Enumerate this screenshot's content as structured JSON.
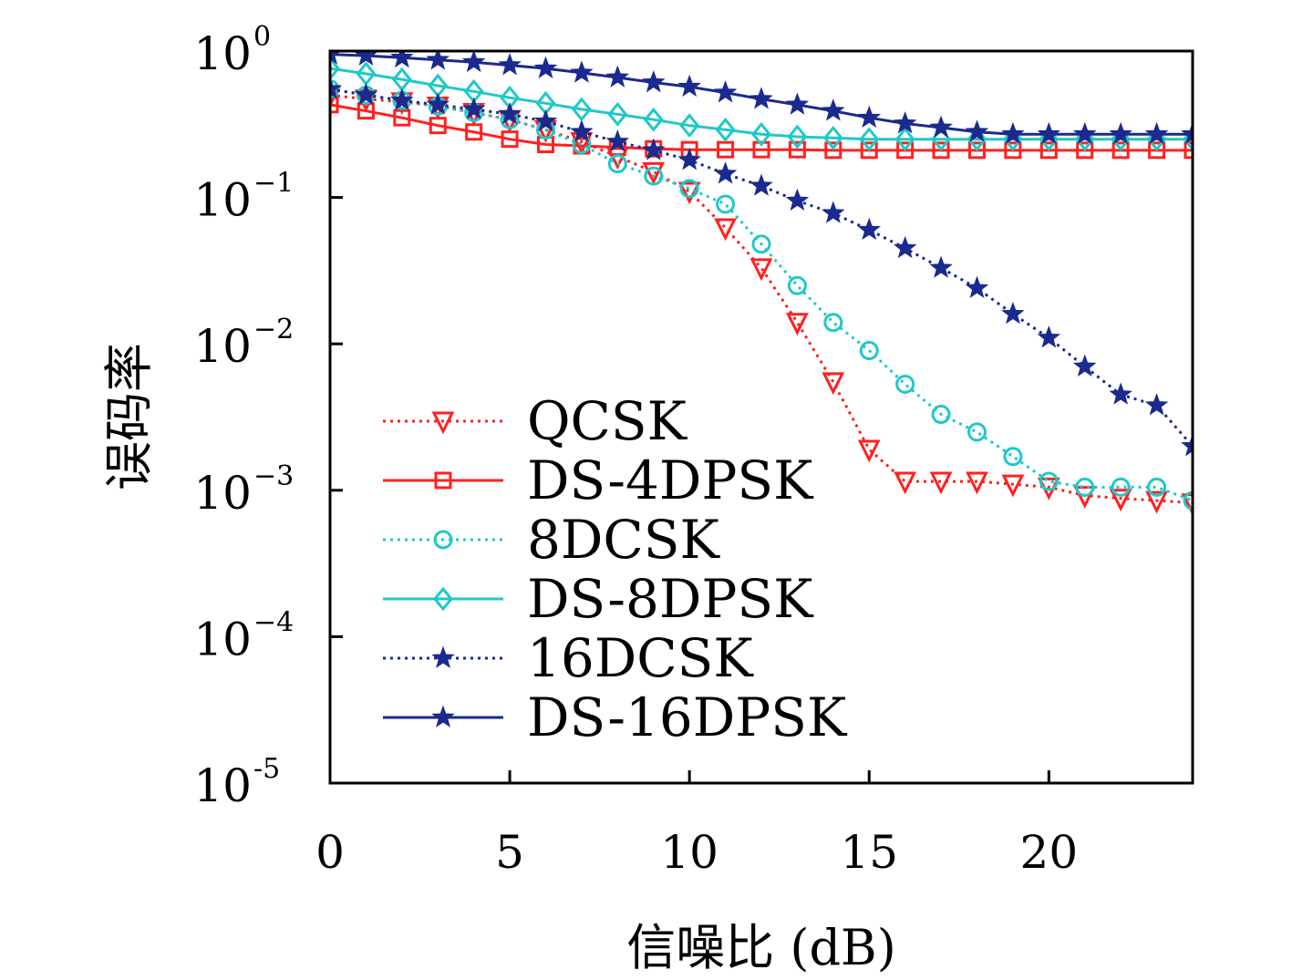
{
  "chart_data": {
    "type": "line",
    "title": "",
    "xlabel": "信噪比 (dB)",
    "ylabel": "误码率",
    "xlim": [
      0,
      24
    ],
    "ylim": [
      1e-05,
      1
    ],
    "yscale": "log",
    "xticks": [
      0,
      5,
      10,
      15,
      20
    ],
    "xtick_labels": [
      "0",
      "5",
      "10",
      "15",
      "20"
    ],
    "yticks": [
      {
        "value": 1,
        "base": "10",
        "exp": "0"
      },
      {
        "value": 0.1,
        "base": "10",
        "exp": "−1"
      },
      {
        "value": 0.01,
        "base": "10",
        "exp": "−2"
      },
      {
        "value": 0.001,
        "base": "10",
        "exp": "−3"
      },
      {
        "value": 0.0001,
        "base": "10",
        "exp": "−4"
      },
      {
        "value": 1e-05,
        "base": "10",
        "exp": "-5"
      }
    ],
    "grid": false,
    "legend_position": "lower-left",
    "series": [
      {
        "name": "QCSK",
        "color": "#ff2020",
        "dash": "dotted",
        "marker": "triangle-down",
        "x": [
          0,
          1,
          2,
          3,
          4,
          5,
          6,
          7,
          8,
          9,
          10,
          11,
          12,
          13,
          14,
          15,
          16,
          17,
          18,
          19,
          20,
          21,
          22,
          23,
          24
        ],
        "y": [
          0.5,
          0.47,
          0.45,
          0.42,
          0.38,
          0.34,
          0.29,
          0.24,
          0.19,
          0.15,
          0.11,
          0.062,
          0.033,
          0.014,
          0.0055,
          0.0019,
          0.00115,
          0.00115,
          0.00115,
          0.0011,
          0.00105,
          0.00092,
          0.00088,
          0.00085,
          0.00082
        ]
      },
      {
        "name": "DS-4DPSK",
        "color": "#ff2020",
        "dash": "solid",
        "marker": "square",
        "x": [
          0,
          1,
          2,
          3,
          4,
          5,
          6,
          7,
          8,
          9,
          10,
          11,
          12,
          13,
          14,
          15,
          16,
          17,
          18,
          19,
          20,
          21,
          22,
          23,
          24
        ],
        "y": [
          0.43,
          0.39,
          0.35,
          0.31,
          0.28,
          0.25,
          0.23,
          0.225,
          0.22,
          0.215,
          0.212,
          0.212,
          0.212,
          0.212,
          0.21,
          0.21,
          0.21,
          0.21,
          0.21,
          0.21,
          0.21,
          0.21,
          0.21,
          0.21,
          0.21
        ]
      },
      {
        "name": "8DCSK",
        "color": "#20c8c8",
        "dash": "dotted",
        "marker": "circle",
        "x": [
          0,
          1,
          2,
          3,
          4,
          5,
          6,
          7,
          8,
          9,
          10,
          11,
          12,
          13,
          14,
          15,
          16,
          17,
          18,
          19,
          20,
          21,
          22,
          23,
          24
        ],
        "y": [
          0.55,
          0.5,
          0.46,
          0.42,
          0.38,
          0.34,
          0.29,
          0.23,
          0.17,
          0.14,
          0.115,
          0.09,
          0.048,
          0.025,
          0.014,
          0.009,
          0.0053,
          0.0033,
          0.0025,
          0.0017,
          0.00115,
          0.00105,
          0.00105,
          0.00105,
          0.00085
        ]
      },
      {
        "name": "DS-8DPSK",
        "color": "#20c8c8",
        "dash": "solid",
        "marker": "diamond",
        "x": [
          0,
          1,
          2,
          3,
          4,
          5,
          6,
          7,
          8,
          9,
          10,
          11,
          12,
          13,
          14,
          15,
          16,
          17,
          18,
          19,
          20,
          21,
          22,
          23,
          24
        ],
        "y": [
          0.76,
          0.7,
          0.64,
          0.58,
          0.53,
          0.48,
          0.44,
          0.4,
          0.37,
          0.34,
          0.31,
          0.29,
          0.27,
          0.26,
          0.255,
          0.25,
          0.25,
          0.25,
          0.25,
          0.25,
          0.25,
          0.25,
          0.25,
          0.25,
          0.25
        ]
      },
      {
        "name": "16DCSK",
        "color": "#1a2a8f",
        "dash": "dotted",
        "marker": "star",
        "x": [
          0,
          1,
          2,
          3,
          4,
          5,
          6,
          7,
          8,
          9,
          10,
          11,
          12,
          13,
          14,
          15,
          16,
          17,
          18,
          19,
          20,
          21,
          22,
          23,
          24
        ],
        "y": [
          0.55,
          0.5,
          0.46,
          0.43,
          0.4,
          0.37,
          0.33,
          0.28,
          0.24,
          0.21,
          0.18,
          0.145,
          0.12,
          0.095,
          0.078,
          0.06,
          0.045,
          0.033,
          0.024,
          0.016,
          0.011,
          0.007,
          0.0045,
          0.0038,
          0.002
        ]
      },
      {
        "name": "DS-16DPSK",
        "color": "#1a2a8f",
        "dash": "solid",
        "marker": "star",
        "x": [
          0,
          1,
          2,
          3,
          4,
          5,
          6,
          7,
          8,
          9,
          10,
          11,
          12,
          13,
          14,
          15,
          16,
          17,
          18,
          19,
          20,
          21,
          22,
          23,
          24
        ],
        "y": [
          0.95,
          0.93,
          0.9,
          0.87,
          0.84,
          0.8,
          0.76,
          0.71,
          0.66,
          0.61,
          0.57,
          0.52,
          0.47,
          0.43,
          0.39,
          0.35,
          0.32,
          0.3,
          0.28,
          0.27,
          0.27,
          0.27,
          0.27,
          0.27,
          0.27
        ]
      }
    ]
  }
}
